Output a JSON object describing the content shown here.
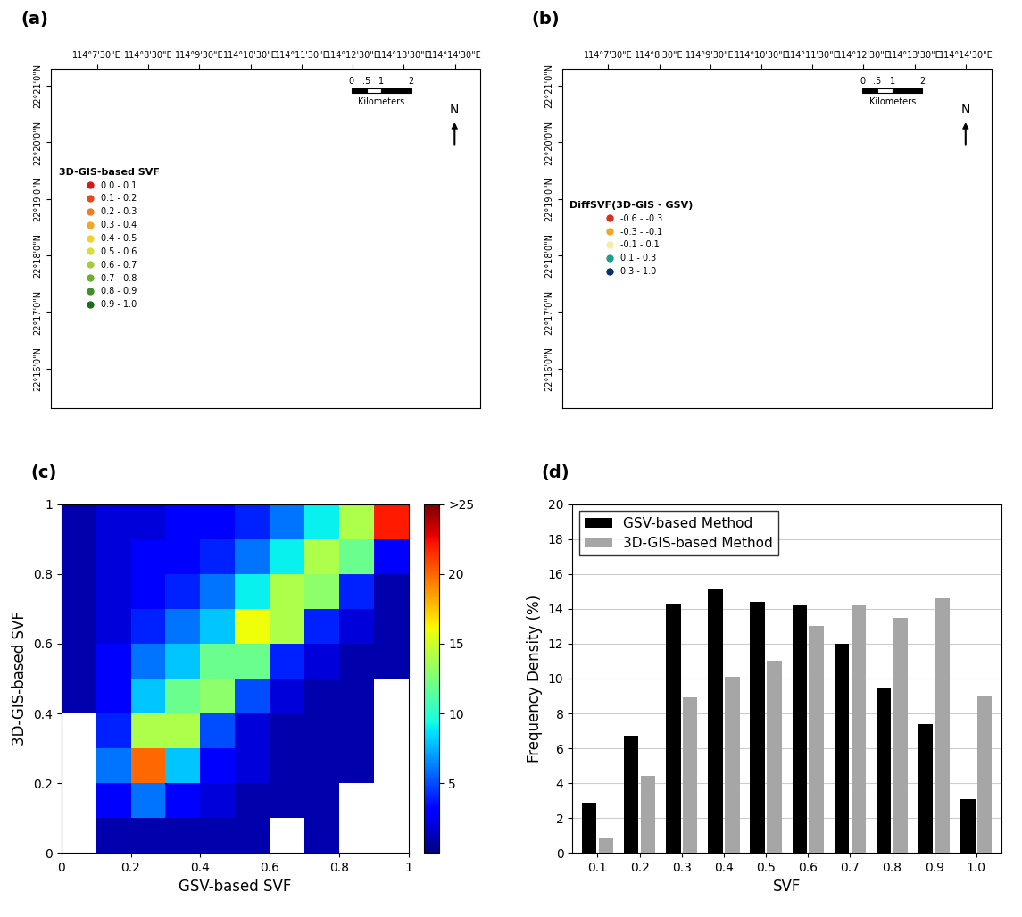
{
  "chart_data": [
    {
      "type": "map",
      "panel_label": "(a)",
      "xlim": [
        114.11,
        114.25
      ],
      "ylim": [
        22.255,
        22.355
      ],
      "xticks": [
        {
          "value": 114.125,
          "label": "114°7'30\"E"
        },
        {
          "value": 114.1417,
          "label": "114°8'30\"E"
        },
        {
          "value": 114.1583,
          "label": "114°9'30\"E"
        },
        {
          "value": 114.175,
          "label": "114°10'30\"E"
        },
        {
          "value": 114.1917,
          "label": "114°11'30\"E"
        },
        {
          "value": 114.2083,
          "label": "114°12'30\"E"
        },
        {
          "value": 114.225,
          "label": "114°13'30\"E"
        },
        {
          "value": 114.2417,
          "label": "114°14'30\"E"
        }
      ],
      "yticks": [
        {
          "value": 22.2667,
          "label": "22°16'0\"N"
        },
        {
          "value": 22.2833,
          "label": "22°17'0\"N"
        },
        {
          "value": 22.3,
          "label": "22°18'0\"N"
        },
        {
          "value": 22.3167,
          "label": "22°19'0\"N"
        },
        {
          "value": 22.3333,
          "label": "22°20'0\"N"
        },
        {
          "value": 22.35,
          "label": "22°21'0\"N"
        }
      ],
      "legend": "center left",
      "legend_title": "3D-GIS-based SVF",
      "series": [
        {
          "name": "0.0 - 0.1",
          "color": "#d7191c"
        },
        {
          "name": "0.1 - 0.2",
          "color": "#e34a1f"
        },
        {
          "name": "0.2 - 0.3",
          "color": "#f07c27"
        },
        {
          "name": "0.3 - 0.4",
          "color": "#f5a623"
        },
        {
          "name": "0.4 - 0.5",
          "color": "#f2d22e"
        },
        {
          "name": "0.5 - 0.6",
          "color": "#d6e03a"
        },
        {
          "name": "0.6 - 0.7",
          "color": "#a6cc3a"
        },
        {
          "name": "0.7 - 0.8",
          "color": "#6fae2e"
        },
        {
          "name": "0.8 - 0.9",
          "color": "#3f8f26"
        },
        {
          "name": "0.9 - 1.0",
          "color": "#1e6b1a"
        }
      ],
      "scale_labels": [
        "0",
        ".5",
        "1",
        "2"
      ],
      "scale_unit": "Kilometers",
      "north_label": "N"
    },
    {
      "type": "map",
      "panel_label": "(b)",
      "xlim": [
        114.11,
        114.25
      ],
      "ylim": [
        22.255,
        22.355
      ],
      "xticks": [
        {
          "value": 114.125,
          "label": "114°7'30\"E"
        },
        {
          "value": 114.1417,
          "label": "114°8'30\"E"
        },
        {
          "value": 114.1583,
          "label": "114°9'30\"E"
        },
        {
          "value": 114.175,
          "label": "114°10'30\"E"
        },
        {
          "value": 114.1917,
          "label": "114°11'30\"E"
        },
        {
          "value": 114.2083,
          "label": "114°12'30\"E"
        },
        {
          "value": 114.225,
          "label": "114°13'30\"E"
        },
        {
          "value": 114.2417,
          "label": "114°14'30\"E"
        }
      ],
      "yticks": [
        {
          "value": 22.2667,
          "label": "22°16'0\"N"
        },
        {
          "value": 22.2833,
          "label": "22°17'0\"N"
        },
        {
          "value": 22.3,
          "label": "22°18'0\"N"
        },
        {
          "value": 22.3167,
          "label": "22°19'0\"N"
        },
        {
          "value": 22.3333,
          "label": "22°20'0\"N"
        },
        {
          "value": 22.35,
          "label": "22°21'0\"N"
        }
      ],
      "legend": "center left",
      "legend_title": "DiffSVF(3D-GIS - GSV)",
      "series": [
        {
          "name": "-0.6 - -0.3",
          "color": "#d7301f"
        },
        {
          "name": "-0.3 - -0.1",
          "color": "#f5a623"
        },
        {
          "name": "-0.1 - 0.1",
          "color": "#f7eea0"
        },
        {
          "name": "0.1 - 0.3",
          "color": "#1f9e89"
        },
        {
          "name": "0.3 - 1.0",
          "color": "#08306b"
        }
      ],
      "scale_labels": [
        "0",
        ".5",
        "1",
        "2"
      ],
      "scale_unit": "Kilometers",
      "north_label": "N"
    },
    {
      "type": "heatmap",
      "panel_label": "(c)",
      "x_label": "GSV-based SVF",
      "y_label": "3D-GIS-based SVF",
      "xlim": [
        0,
        1
      ],
      "ylim": [
        0,
        1
      ],
      "xticks": [
        0,
        0.2,
        0.4,
        0.6,
        0.8,
        1
      ],
      "yticks": [
        0,
        0.2,
        0.4,
        0.6,
        0.8,
        1
      ],
      "x_bins": [
        0,
        0.1,
        0.2,
        0.3,
        0.4,
        0.5,
        0.6,
        0.7,
        0.8,
        0.9,
        1.0
      ],
      "y_bins": [
        0,
        0.1,
        0.2,
        0.3,
        0.4,
        0.5,
        0.6,
        0.7,
        0.8,
        0.9,
        1.0
      ],
      "cells": [
        [
          0,
          1,
          1,
          1,
          1,
          1,
          0,
          1,
          0,
          0
        ],
        [
          0,
          3,
          6,
          3,
          2,
          1,
          1,
          1,
          0,
          0
        ],
        [
          0,
          6,
          20,
          8,
          3,
          2,
          1,
          1,
          1,
          0
        ],
        [
          0,
          4,
          14,
          14,
          5,
          2,
          1,
          1,
          1,
          0
        ],
        [
          1,
          3,
          8,
          12,
          13,
          5,
          2,
          1,
          1,
          0
        ],
        [
          1,
          3,
          6,
          8,
          12,
          12,
          4,
          2,
          1,
          1
        ],
        [
          1,
          2,
          4,
          6,
          8,
          16,
          14,
          4,
          2,
          1
        ],
        [
          1,
          2,
          3,
          4,
          6,
          9,
          14,
          13,
          4,
          1
        ],
        [
          1,
          2,
          3,
          3,
          4,
          6,
          9,
          14,
          12,
          3
        ],
        [
          1,
          2,
          2,
          3,
          3,
          4,
          6,
          9,
          14,
          22
        ]
      ],
      "zlim": [
        0,
        25
      ],
      "zticks": [
        5,
        10,
        15,
        20,
        {
          "value": 25,
          "label": ">25"
        }
      ]
    },
    {
      "type": "bar",
      "panel_label": "(d)",
      "x_label": "SVF",
      "y_label": "Frequency Density (%)",
      "categories": [
        "0.1",
        "0.2",
        "0.3",
        "0.4",
        "0.5",
        "0.6",
        "0.7",
        "0.8",
        "0.9",
        "1.0"
      ],
      "series": [
        {
          "name": "GSV-based Method",
          "color": "#000000",
          "values": [
            2.9,
            6.7,
            14.3,
            15.1,
            14.4,
            14.2,
            12.0,
            9.5,
            7.4,
            3.1
          ]
        },
        {
          "name": "3D-GIS-based Method",
          "color": "#a6a6a6",
          "values": [
            0.9,
            4.4,
            8.9,
            10.1,
            11.0,
            13.0,
            14.2,
            13.5,
            14.6,
            9.0
          ]
        }
      ],
      "ylim": [
        0,
        20
      ],
      "yticks": [
        0,
        2,
        4,
        6,
        8,
        10,
        12,
        14,
        16,
        18,
        20
      ],
      "grid": true,
      "legend": "upper left"
    }
  ]
}
